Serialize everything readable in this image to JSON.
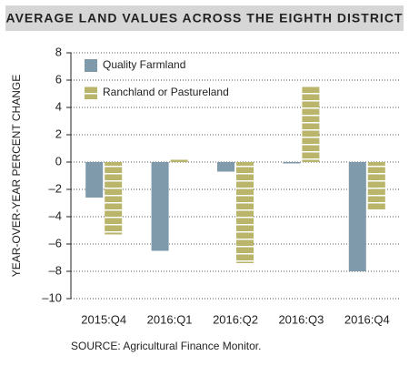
{
  "chart_data": {
    "type": "bar",
    "title": "AVERAGE LAND VALUES ACROSS THE EIGHTH DISTRICT",
    "y_label": "YEAR-OVER-YEAR PERCENT CHANGE",
    "source": "SOURCE: Agricultural Finance Monitor.",
    "categories": [
      "2015:Q4",
      "2016:Q1",
      "2016:Q2",
      "2016:Q3",
      "2016:Q4"
    ],
    "series": [
      {
        "name": "Quality Farmland",
        "color": "#7f9aab",
        "values": [
          -2.6,
          -6.5,
          -0.7,
          -0.1,
          -8.0
        ]
      },
      {
        "name": "Ranchland or Pastureland",
        "color": "#b9b66c",
        "values": [
          -5.3,
          0.2,
          -7.4,
          5.5,
          -3.5
        ]
      }
    ],
    "ylim": [
      -10,
      8
    ],
    "yticks": [
      {
        "value": -10,
        "label": "–10"
      },
      {
        "value": -8,
        "label": "–8"
      },
      {
        "value": -6,
        "label": "–6"
      },
      {
        "value": -4,
        "label": "–4"
      },
      {
        "value": -2,
        "label": "–2"
      },
      0,
      2,
      4,
      6,
      8
    ],
    "grid": true,
    "legend": "upper-left"
  }
}
